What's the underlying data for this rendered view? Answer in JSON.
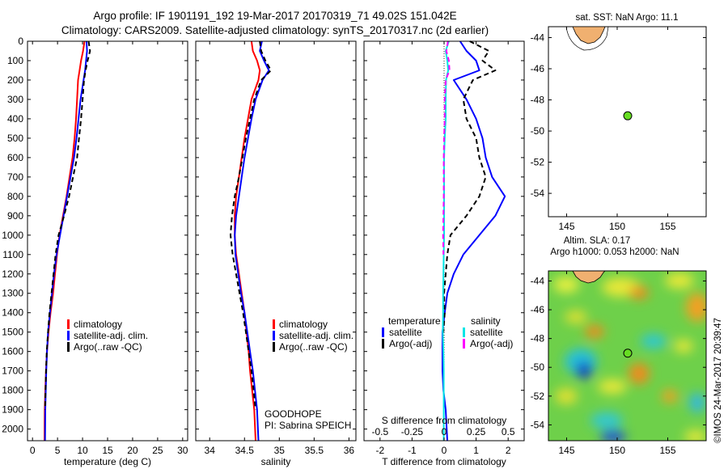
{
  "header": {
    "line1": "Argo profile: IF 1901191_192 19-Mar-2017 20170319_71 49.02S 151.042E",
    "line2": "Climatology: CARS2009. Satellite-adjusted climatology: synTS_20170317.nc (2d earlier)"
  },
  "colors": {
    "climatology": "#ff0000",
    "satellite": "#0000ff",
    "argo": "#000000",
    "sal_satellite": "#00e5e5",
    "sal_argo": "#ff00ff",
    "float_marker": "#66dd22"
  },
  "chart_data": [
    {
      "id": "temperature",
      "type": "line",
      "xlabel": "temperature (deg C)",
      "xlim": [
        -1,
        31
      ],
      "xticks": [
        0,
        5,
        10,
        15,
        20,
        25,
        30
      ],
      "ylim": [
        0,
        2060
      ],
      "yticks": [
        0,
        100,
        200,
        300,
        400,
        500,
        600,
        700,
        800,
        900,
        1000,
        1100,
        1200,
        1300,
        1400,
        1500,
        1600,
        1700,
        1800,
        1900,
        2000
      ],
      "legend": [
        "climatology",
        "satellite-adj. clim.",
        "Argo(..raw -QC)"
      ],
      "series": [
        {
          "name": "climatology",
          "style": "solid",
          "color_key": "climatology",
          "x": [
            10.4,
            10.1,
            9.7,
            9.4,
            9.1,
            8.9,
            8.7,
            8.4,
            8.0,
            7.4,
            6.8,
            6.1,
            5.4,
            4.9,
            4.5,
            4.1,
            3.6,
            3.2,
            2.9,
            2.7,
            2.55,
            2.45,
            2.4
          ],
          "y": [
            0,
            50,
            100,
            150,
            200,
            300,
            400,
            500,
            600,
            700,
            800,
            900,
            1000,
            1100,
            1200,
            1300,
            1400,
            1500,
            1600,
            1700,
            1800,
            1900,
            2060
          ]
        },
        {
          "name": "satellite-adj. clim.",
          "style": "solid",
          "color_key": "satellite",
          "x": [
            10.8,
            10.9,
            10.7,
            10.5,
            10.2,
            9.6,
            9.2,
            8.8,
            8.3,
            7.6,
            6.9,
            6.2,
            5.5,
            4.8,
            4.3,
            3.9,
            3.5,
            3.1,
            2.9,
            2.75,
            2.65,
            2.55,
            2.5
          ],
          "y": [
            0,
            50,
            100,
            150,
            200,
            300,
            400,
            500,
            600,
            700,
            800,
            900,
            1000,
            1100,
            1200,
            1300,
            1400,
            1500,
            1600,
            1700,
            1800,
            1900,
            2060
          ]
        },
        {
          "name": "Argo(..raw -QC)",
          "style": "dashed",
          "color_key": "argo",
          "x": [
            11.2,
            11.5,
            11.0,
            10.6,
            10.3,
            10.0,
            9.7,
            9.3,
            8.9,
            8.1,
            7.3,
            6.3,
            5.2,
            4.6,
            4.2,
            3.8,
            3.4,
            3.1,
            2.85,
            2.7,
            2.6,
            2.5
          ],
          "y": [
            0,
            50,
            100,
            150,
            200,
            300,
            400,
            500,
            600,
            700,
            800,
            900,
            1000,
            1100,
            1200,
            1300,
            1400,
            1500,
            1600,
            1700,
            1800,
            1900
          ]
        }
      ]
    },
    {
      "id": "salinity",
      "type": "line",
      "xlabel": "salinity",
      "xlim": [
        33.8,
        36.1
      ],
      "xticks": [
        34,
        34.5,
        35,
        35.5,
        36
      ],
      "ylim": [
        0,
        2060
      ],
      "legend": [
        "climatology",
        "satellite-adj. clim.",
        "Argo(..raw -QC)"
      ],
      "annotation": [
        "GOODHOPE",
        "PI: Sabrina SPEICH"
      ],
      "series": [
        {
          "name": "climatology",
          "style": "solid",
          "color_key": "climatology",
          "x": [
            34.6,
            34.62,
            34.68,
            34.72,
            34.7,
            34.6,
            34.55,
            34.5,
            34.46,
            34.42,
            34.38,
            34.36,
            34.36,
            34.38,
            34.42,
            34.46,
            34.5,
            34.53,
            34.56,
            34.58,
            34.61,
            34.64,
            34.66
          ],
          "y": [
            0,
            50,
            100,
            150,
            200,
            300,
            400,
            500,
            600,
            700,
            800,
            900,
            1000,
            1100,
            1200,
            1300,
            1400,
            1500,
            1600,
            1700,
            1800,
            1900,
            2060
          ]
        },
        {
          "name": "satellite-adj. clim.",
          "style": "solid",
          "color_key": "satellite",
          "x": [
            34.75,
            34.72,
            34.78,
            34.85,
            34.76,
            34.66,
            34.6,
            34.55,
            34.5,
            34.46,
            34.42,
            34.38,
            34.36,
            34.37,
            34.41,
            34.45,
            34.5,
            34.54,
            34.58,
            34.62,
            34.65,
            34.68,
            34.7
          ],
          "y": [
            0,
            50,
            100,
            150,
            200,
            300,
            400,
            500,
            600,
            700,
            800,
            900,
            1000,
            1100,
            1200,
            1300,
            1400,
            1500,
            1600,
            1700,
            1800,
            1900,
            2060
          ]
        },
        {
          "name": "Argo(..raw -QC)",
          "style": "dashed",
          "color_key": "argo",
          "x": [
            34.72,
            34.74,
            34.8,
            34.88,
            34.74,
            34.64,
            34.58,
            34.52,
            34.47,
            34.42,
            34.36,
            34.32,
            34.3,
            34.33,
            34.38,
            34.43,
            34.48,
            34.52,
            34.56,
            34.6,
            34.63,
            34.66
          ],
          "y": [
            0,
            50,
            100,
            150,
            200,
            300,
            400,
            500,
            600,
            700,
            800,
            900,
            1000,
            1100,
            1200,
            1300,
            1400,
            1500,
            1600,
            1700,
            1800,
            1900
          ]
        }
      ]
    },
    {
      "id": "difference",
      "type": "line",
      "xlabel": "T difference from climatology",
      "xlabel_top": "S difference from climatology",
      "xlim": [
        -2.5,
        2.5
      ],
      "xticks": [
        -2,
        -1,
        0,
        1,
        2
      ],
      "top_tick_labels": [
        "-0.5",
        "-0.25",
        "0",
        "0.25",
        "0.5"
      ],
      "ylim": [
        0,
        2060
      ],
      "legend_left_title": "temperature",
      "legend_right_title": "salinity",
      "legend_left": [
        "satellite",
        "Argo(-adj)"
      ],
      "legend_right": [
        "satellite",
        "Argo(-adj)"
      ],
      "series": [
        {
          "name": "satellite",
          "group": "temperature",
          "style": "solid",
          "color_key": "satellite",
          "x": [
            0.5,
            0.7,
            1.0,
            1.1,
            0.3,
            0.7,
            1.0,
            1.2,
            1.3,
            1.5,
            1.9,
            1.6,
            1.1,
            0.6,
            0.3,
            0.1,
            0.02,
            -0.05,
            -0.05,
            -0.05,
            -0.02,
            0.05,
            0.1
          ],
          "y": [
            0,
            50,
            100,
            150,
            200,
            300,
            400,
            500,
            600,
            700,
            800,
            900,
            1000,
            1100,
            1200,
            1300,
            1400,
            1500,
            1600,
            1700,
            1800,
            1900,
            2060
          ]
        },
        {
          "name": "Argo(-adj)",
          "group": "temperature",
          "style": "dashed",
          "color_key": "argo",
          "x": [
            0.8,
            1.4,
            1.2,
            1.6,
            0.9,
            0.6,
            0.7,
            1.0,
            1.1,
            1.3,
            1.1,
            0.7,
            0.2,
            0.1,
            0.05,
            0.0,
            0.02,
            -0.02
          ],
          "y": [
            0,
            50,
            100,
            150,
            200,
            300,
            400,
            500,
            600,
            700,
            800,
            900,
            1000,
            1100,
            1200,
            1300,
            1400,
            1500
          ]
        },
        {
          "name": "satellite",
          "group": "salinity",
          "style": "solid",
          "color_key": "sal_satellite",
          "x": [
            0.15,
            0.05,
            0.1,
            0.13,
            0.06,
            0.05,
            0.05,
            0.02,
            0.0,
            0.0,
            0.0,
            0.0,
            0.0,
            -0.01,
            -0.02,
            -0.03,
            -0.03,
            -0.04,
            -0.02,
            -0.01,
            -0.01,
            -0.01,
            -0.01
          ],
          "y": [
            0,
            50,
            100,
            150,
            200,
            300,
            400,
            500,
            600,
            700,
            800,
            900,
            1000,
            1100,
            1200,
            1300,
            1400,
            1500,
            1600,
            1700,
            1800,
            1900,
            2060
          ]
        },
        {
          "name": "Argo(-adj)",
          "group": "salinity",
          "style": "dashed",
          "color_key": "sal_argo",
          "x": [
            0.12,
            0.07,
            0.15,
            0.17,
            0.05,
            0.02,
            0.02,
            0.0,
            -0.01,
            -0.01,
            -0.01,
            -0.02,
            -0.03,
            -0.02
          ],
          "y": [
            0,
            50,
            100,
            150,
            200,
            300,
            400,
            500,
            600,
            700,
            800,
            900,
            1000,
            1100
          ]
        }
      ]
    }
  ],
  "map_top": {
    "title": "sat. SST: NaN Argo: 11.1",
    "yticks": [
      -44,
      -46,
      -48,
      -50,
      -52,
      -54
    ],
    "xticks": [
      145,
      150,
      155
    ],
    "xlim": [
      143.2,
      158.8
    ],
    "ylim": [
      -55.5,
      -43.3
    ],
    "float": {
      "lon": 151.042,
      "lat": -49.02
    }
  },
  "map_bottom": {
    "title1": "Altim. SLA: 0.17",
    "title2": "Argo h1000: 0.053 h2000: NaN",
    "yticks": [
      -44,
      -46,
      -48,
      -50,
      -52,
      -54
    ],
    "xticks": [
      145,
      150,
      155
    ],
    "xlim": [
      143.2,
      158.8
    ],
    "ylim": [
      -55.1,
      -43.3
    ],
    "float": {
      "lon": 151.042,
      "lat": -49.02
    },
    "side_label": "©IMOS 24-Mar-2017 20:39:47"
  }
}
